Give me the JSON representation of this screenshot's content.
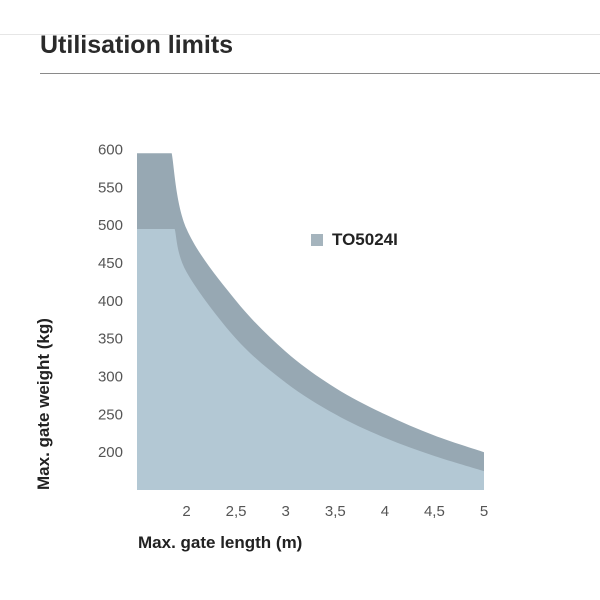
{
  "page": {
    "title": "Utilisation limits"
  },
  "chart_data": {
    "type": "area",
    "title": "",
    "xlabel": "Max. gate length (m)",
    "ylabel": "Max. gate weight (kg)",
    "xlim": [
      1.5,
      5
    ],
    "ylim": [
      150,
      610
    ],
    "x_ticks": [
      "2",
      "2,5",
      "3",
      "3,5",
      "4",
      "4,5",
      "5"
    ],
    "x_tick_values": [
      2,
      2.5,
      3,
      3.5,
      4,
      4.5,
      5
    ],
    "y_ticks": [
      "200",
      "250",
      "300",
      "350",
      "400",
      "450",
      "500",
      "550",
      "600"
    ],
    "y_tick_values": [
      200,
      250,
      300,
      350,
      400,
      450,
      500,
      550,
      600
    ],
    "grid": false,
    "legend": {
      "position": "upper-right",
      "entries": [
        {
          "label": "TO5024I",
          "color": "#a5b4bd"
        }
      ]
    },
    "series": [
      {
        "name": "TO5024I",
        "color": "#97a8b3",
        "x": [
          1.5,
          1.85,
          2.0,
          2.5,
          3.0,
          3.5,
          4.0,
          4.5,
          5.0
        ],
        "y": [
          595,
          595,
          495,
          400,
          333,
          285,
          250,
          222,
          200
        ]
      },
      {
        "color": "#b3c8d4",
        "x": [
          1.5,
          1.88,
          2.0,
          2.5,
          3.0,
          3.5,
          4.0,
          4.5,
          5.0
        ],
        "y": [
          495,
          495,
          438,
          350,
          292,
          250,
          219,
          195,
          175
        ]
      }
    ]
  }
}
